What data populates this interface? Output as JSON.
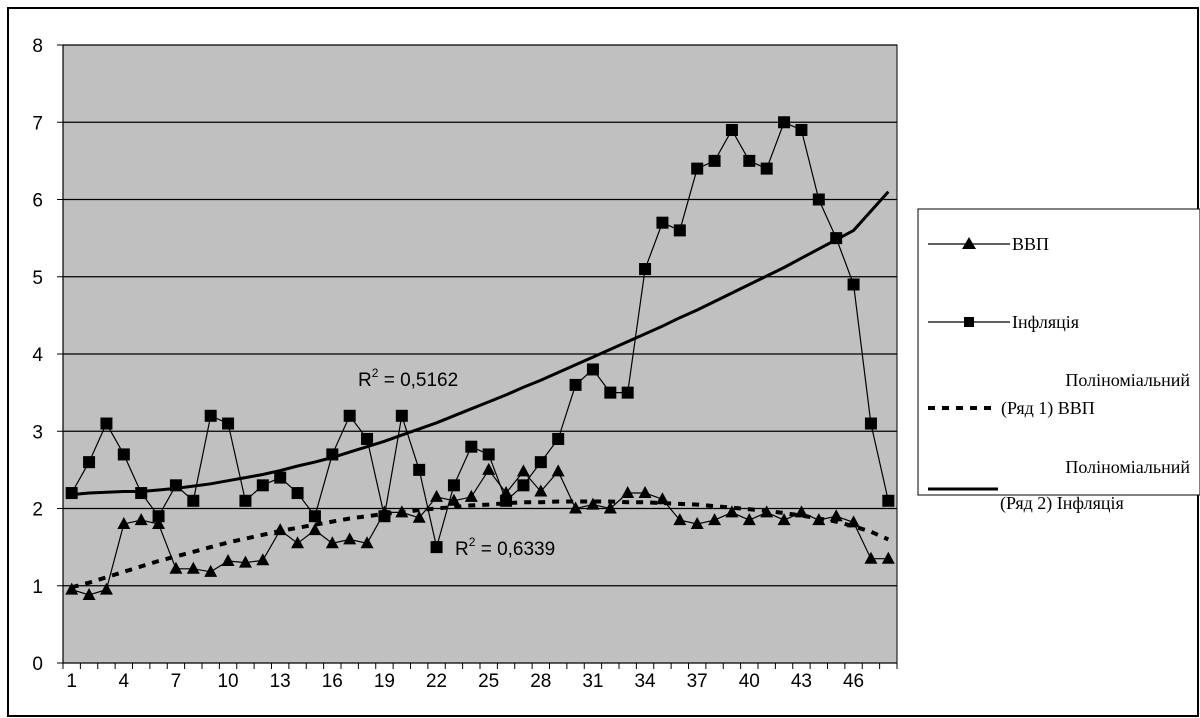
{
  "chart_data": {
    "type": "line",
    "ylim": [
      0,
      8
    ],
    "yticks": [
      0,
      1,
      2,
      3,
      4,
      5,
      6,
      7,
      8
    ],
    "x": [
      1,
      2,
      3,
      4,
      5,
      6,
      7,
      8,
      9,
      10,
      11,
      12,
      13,
      14,
      15,
      16,
      17,
      18,
      19,
      20,
      21,
      22,
      23,
      24,
      25,
      26,
      27,
      28,
      29,
      30,
      31,
      32,
      33,
      34,
      35,
      36,
      37,
      38,
      39,
      40,
      41,
      42,
      43,
      44,
      45,
      46,
      47,
      48
    ],
    "xtick_labels": [
      "1",
      "4",
      "7",
      "10",
      "13",
      "16",
      "19",
      "22",
      "25",
      "28",
      "31",
      "34",
      "37",
      "40",
      "43",
      "46"
    ],
    "xtick_positions": [
      1,
      4,
      7,
      10,
      13,
      16,
      19,
      22,
      25,
      28,
      31,
      34,
      37,
      40,
      43,
      46
    ],
    "grid": true,
    "background": "#c0c0c0",
    "series": [
      {
        "name": "ВВП",
        "marker": "triangle",
        "color": "#000000",
        "values": [
          0.95,
          0.88,
          0.95,
          1.8,
          1.85,
          1.8,
          1.22,
          1.22,
          1.18,
          1.32,
          1.3,
          1.33,
          1.72,
          1.55,
          1.72,
          1.55,
          1.6,
          1.55,
          1.95,
          1.95,
          1.88,
          2.15,
          2.1,
          2.15,
          2.5,
          2.2,
          2.48,
          2.22,
          2.48,
          2.0,
          2.05,
          2.0,
          2.2,
          2.2,
          2.12,
          1.85,
          1.8,
          1.85,
          1.95,
          1.85,
          1.95,
          1.85,
          1.95,
          1.85,
          1.9,
          1.82,
          1.35,
          1.35
        ]
      },
      {
        "name": "Інфляція",
        "marker": "square",
        "color": "#000000",
        "values": [
          2.2,
          2.6,
          3.1,
          2.7,
          2.2,
          1.9,
          2.3,
          2.1,
          3.2,
          3.1,
          2.1,
          2.3,
          2.4,
          2.2,
          1.9,
          2.7,
          3.2,
          2.9,
          1.9,
          3.2,
          2.5,
          1.5,
          2.3,
          2.8,
          2.7,
          2.1,
          2.3,
          2.6,
          2.9,
          3.6,
          3.8,
          3.5,
          3.5,
          5.1,
          5.7,
          5.6,
          6.4,
          6.5,
          6.9,
          6.5,
          6.4,
          7.0,
          6.9,
          6.0,
          5.5,
          4.9,
          3.1,
          2.1
        ]
      }
    ],
    "trendlines": [
      {
        "name": "Поліноміальний (Ряд 1) ВВП",
        "style": "dashed",
        "label": "R² = 0,6339",
        "label_prefix": "R",
        "label_suffix": " = 0,6339",
        "values": [
          0.98,
          1.04,
          1.11,
          1.18,
          1.25,
          1.32,
          1.38,
          1.44,
          1.5,
          1.56,
          1.61,
          1.66,
          1.71,
          1.75,
          1.79,
          1.83,
          1.87,
          1.9,
          1.93,
          1.95,
          1.98,
          2.0,
          2.02,
          2.04,
          2.05,
          2.07,
          2.08,
          2.08,
          2.09,
          2.09,
          2.09,
          2.09,
          2.08,
          2.08,
          2.07,
          2.06,
          2.05,
          2.03,
          2.01,
          1.99,
          1.97,
          1.94,
          1.91,
          1.87,
          1.83,
          1.77,
          1.7,
          1.6
        ]
      },
      {
        "name": "Поліноміальний (Ряд 2) Інфляція",
        "style": "solid",
        "label": "R² = 0,5162",
        "label_prefix": "R",
        "label_suffix": " = 0,5162",
        "values": [
          2.18,
          2.2,
          2.21,
          2.22,
          2.22,
          2.24,
          2.26,
          2.29,
          2.32,
          2.36,
          2.4,
          2.44,
          2.49,
          2.55,
          2.6,
          2.66,
          2.73,
          2.8,
          2.87,
          2.95,
          3.03,
          3.11,
          3.2,
          3.29,
          3.38,
          3.47,
          3.57,
          3.66,
          3.76,
          3.86,
          3.96,
          4.06,
          4.16,
          4.26,
          4.36,
          4.47,
          4.57,
          4.68,
          4.79,
          4.9,
          5.01,
          5.12,
          5.24,
          5.36,
          5.48,
          5.6,
          5.85,
          6.1
        ]
      }
    ],
    "legend": {
      "placement": "right",
      "entries": [
        {
          "label": "ВВП",
          "symbol": "line-triangle"
        },
        {
          "label": "Інфляція",
          "symbol": "line-square"
        },
        {
          "label_line1": "Поліноміальний",
          "label_line2": "(Ряд 1) ВВП",
          "symbol": "dashed"
        },
        {
          "label_line1": "Поліноміальний",
          "label_line2": "(Ряд 2) Інфляція",
          "symbol": "solid"
        }
      ]
    }
  }
}
